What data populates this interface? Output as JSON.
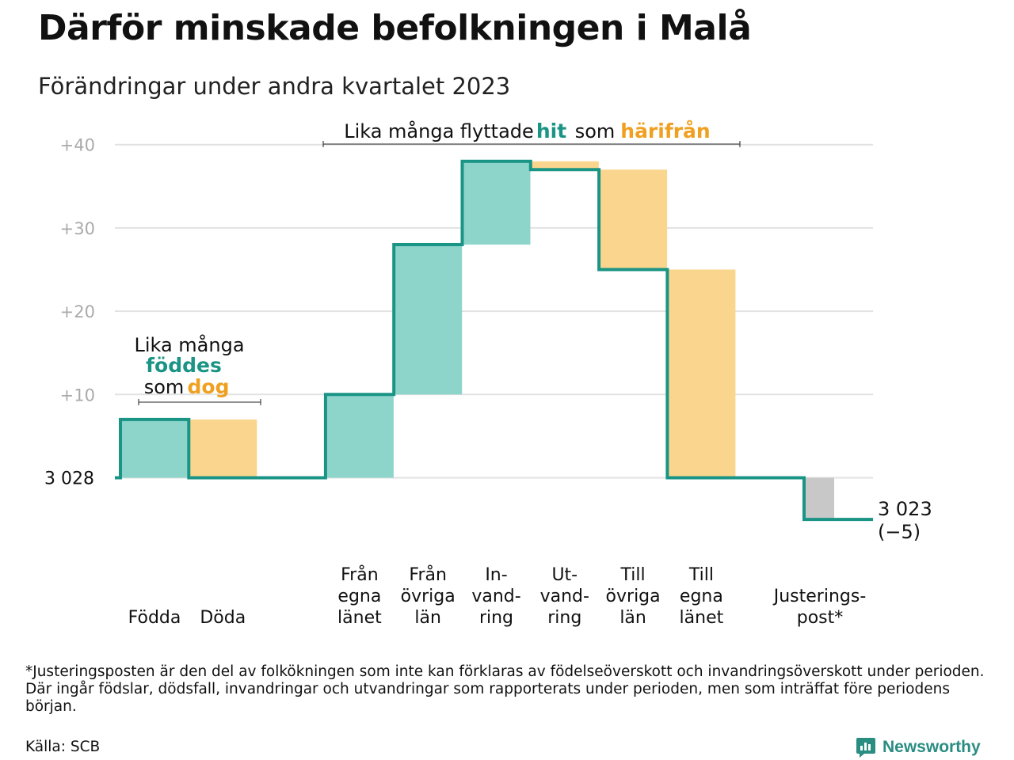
{
  "title": "Därför minskade befolkningen i Malå",
  "subtitle": "Förändringar under andra kvartalet 2023",
  "chart_data": {
    "type": "waterfall",
    "baseline_label": "3  028",
    "ylim": [
      -5.5,
      40
    ],
    "y_ticks": [
      {
        "value": 10,
        "label": "+10"
      },
      {
        "value": 20,
        "label": "+20"
      },
      {
        "value": 30,
        "label": "+30"
      },
      {
        "value": 40,
        "label": "+40"
      }
    ],
    "steps": [
      {
        "label": [
          "Födda"
        ],
        "value": 7,
        "kind": "in"
      },
      {
        "label": [
          "Döda"
        ],
        "value": -7,
        "kind": "out"
      },
      {
        "label": [
          "Från",
          "egna",
          "länet"
        ],
        "value": 10,
        "kind": "in"
      },
      {
        "label": [
          "Från",
          "övriga",
          "län"
        ],
        "value": 18,
        "kind": "in"
      },
      {
        "label": [
          "In-",
          "vand-",
          "ring"
        ],
        "value": 10,
        "kind": "in"
      },
      {
        "label": [
          "Ut-",
          "vand-",
          "ring"
        ],
        "value": -1,
        "kind": "out"
      },
      {
        "label": [
          "Till",
          "övriga",
          "län"
        ],
        "value": -12,
        "kind": "out"
      },
      {
        "label": [
          "Till",
          "egna",
          "länet"
        ],
        "value": -25,
        "kind": "out"
      },
      {
        "label": [
          "Justerings-",
          "post*"
        ],
        "value": -5,
        "kind": "adjust"
      }
    ],
    "end_label": [
      "3 023",
      "(−5)"
    ],
    "annotations": {
      "births": {
        "line1": "Lika många",
        "line2": "föddes",
        "line3a": "som",
        "line3b": "dog"
      },
      "migration": {
        "part1": "Lika många flyttade",
        "part2": "hit",
        "part3": "som",
        "part4": "härifrån"
      }
    },
    "colors": {
      "in": "#8dd5cb",
      "out": "#fad58e",
      "adjust": "#c8c8c8",
      "line": "#1a9485",
      "accent_in": "#1a9485",
      "accent_out": "#f0a020",
      "grid": "#e2e2e2"
    }
  },
  "footnote": "*Justeringsposten är den del av folkökningen som inte kan förklaras av födelseöverskott och invandringsöverskott under perioden. Där ingår födslar, dödsfall, invandringar och utvandringar som rapporterats under perioden, men som inträffat före periodens början.",
  "source": "Källa: SCB",
  "brand": {
    "name": "Newsworthy",
    "icon": "newsworthy-logo-icon"
  }
}
